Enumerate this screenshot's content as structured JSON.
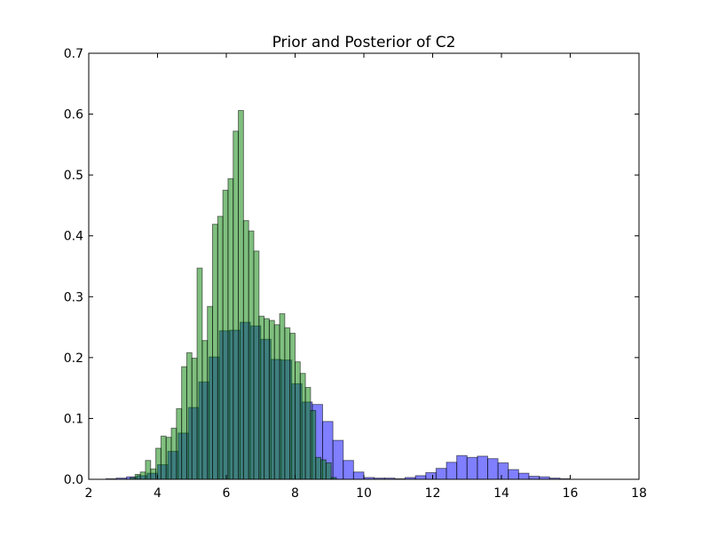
{
  "chart_data": {
    "type": "bar",
    "title": "Prior and Posterior of C2",
    "xlabel": "",
    "ylabel": "",
    "xlim": [
      2,
      18
    ],
    "ylim": [
      0,
      0.7
    ],
    "x_ticks": [
      2,
      4,
      6,
      8,
      10,
      12,
      14,
      16,
      18
    ],
    "y_ticks": [
      0.0,
      0.1,
      0.2,
      0.3,
      0.4,
      0.5,
      0.6,
      0.7
    ],
    "grid": false,
    "legend": "none",
    "series": [
      {
        "color": "#0000ff",
        "bin_width": 0.3,
        "x_start": 2.5,
        "values": [
          0.001,
          0.002,
          0.004,
          0.006,
          0.01,
          0.024,
          0.046,
          0.076,
          0.118,
          0.16,
          0.201,
          0.244,
          0.245,
          0.258,
          0.252,
          0.23,
          0.197,
          0.196,
          0.157,
          0.127,
          0.123,
          0.095,
          0.064,
          0.031,
          0.012,
          0.003,
          0.002,
          0.002,
          0.001,
          0.003,
          0.006,
          0.011,
          0.018,
          0.028,
          0.039,
          0.036,
          0.038,
          0.034,
          0.027,
          0.016,
          0.01,
          0.005,
          0.004,
          0.002,
          0.001
        ]
      },
      {
        "color": "#008000",
        "bin_width": 0.15,
        "x_start": 3.2,
        "values": [
          0.003,
          0.008,
          0.012,
          0.031,
          0.017,
          0.051,
          0.071,
          0.069,
          0.084,
          0.116,
          0.185,
          0.208,
          0.199,
          0.347,
          0.228,
          0.284,
          0.419,
          0.432,
          0.475,
          0.494,
          0.572,
          0.606,
          0.425,
          0.408,
          0.375,
          0.268,
          0.264,
          0.261,
          0.254,
          0.272,
          0.249,
          0.24,
          0.193,
          0.174,
          0.151,
          0.113,
          0.036,
          0.032,
          0.027,
          0.003
        ]
      }
    ]
  }
}
